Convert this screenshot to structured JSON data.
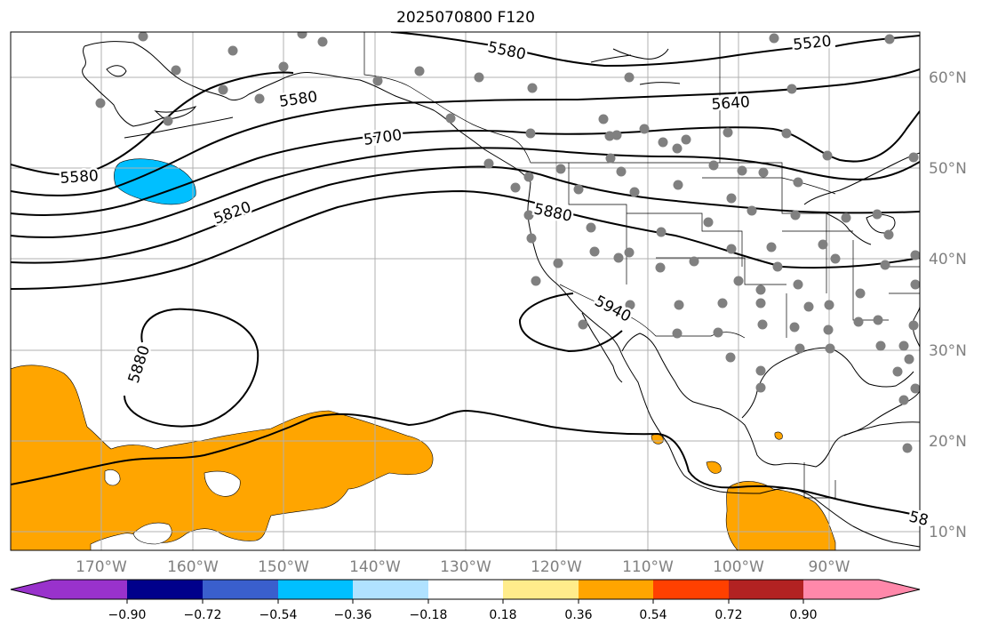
{
  "title": "2025070800 F120",
  "lon_labels": [
    "170°W",
    "160°W",
    "150°W",
    "140°W",
    "130°W",
    "120°W",
    "110°W",
    "100°W",
    "90°W"
  ],
  "lat_labels": [
    "60°N",
    "50°N",
    "40°N",
    "30°N",
    "20°N",
    "10°N"
  ],
  "contour_labels": [
    "5520",
    "5580",
    "5580",
    "5580",
    "5640",
    "5700",
    "5820",
    "5880",
    "5880",
    "5940",
    "58"
  ],
  "colorbar": {
    "ticks": [
      "−0.90",
      "−0.72",
      "−0.54",
      "−0.36",
      "−0.18",
      "0.18",
      "0.36",
      "0.54",
      "0.72",
      "0.90"
    ],
    "colors": [
      "#9932cc",
      "#00008b",
      "#3a5fcd",
      "#00bfff",
      "#b0e2ff",
      "#ffffff",
      "#ffec8b",
      "#ffa500",
      "#ff4000",
      "#b22222",
      "#ff88aa"
    ]
  },
  "colors": {
    "positive_fill": "#ffa500",
    "negative_fill": "#00bfff",
    "station": "#808080",
    "grid": "#b0b0b0"
  }
}
